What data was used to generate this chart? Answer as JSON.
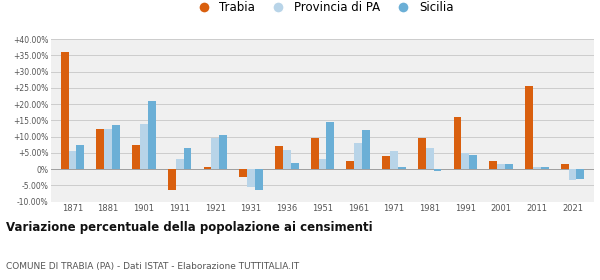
{
  "years": [
    1871,
    1881,
    1901,
    1911,
    1921,
    1931,
    1936,
    1951,
    1961,
    1971,
    1981,
    1991,
    2001,
    2011,
    2021
  ],
  "trabia": [
    36.0,
    12.5,
    7.5,
    -6.5,
    0.5,
    -2.5,
    7.0,
    9.5,
    2.5,
    4.0,
    9.5,
    16.0,
    2.5,
    25.5,
    1.5
  ],
  "provincia_pa": [
    5.5,
    12.5,
    14.0,
    3.0,
    9.5,
    -5.5,
    6.0,
    3.0,
    8.0,
    5.5,
    6.5,
    5.0,
    1.5,
    0.5,
    -3.5
  ],
  "sicilia": [
    7.5,
    13.5,
    21.0,
    6.5,
    10.5,
    -6.5,
    2.0,
    14.5,
    12.0,
    0.5,
    -0.5,
    4.5,
    1.5,
    0.5,
    -3.0
  ],
  "color_trabia": "#d95f0e",
  "color_provincia": "#b8d4e8",
  "color_sicilia": "#6bafd6",
  "bg_color": "#f0f0f0",
  "grid_color": "#cccccc",
  "ylim": [
    -10.0,
    40.0
  ],
  "yticks": [
    -10.0,
    -5.0,
    0.0,
    5.0,
    10.0,
    15.0,
    20.0,
    25.0,
    30.0,
    35.0,
    40.0
  ],
  "title": "Variazione percentuale della popolazione ai censimenti",
  "subtitle": "COMUNE DI TRABIA (PA) - Dati ISTAT - Elaborazione TUTTITALIA.IT",
  "legend_labels": [
    "Trabia",
    "Provincia di PA",
    "Sicilia"
  ]
}
